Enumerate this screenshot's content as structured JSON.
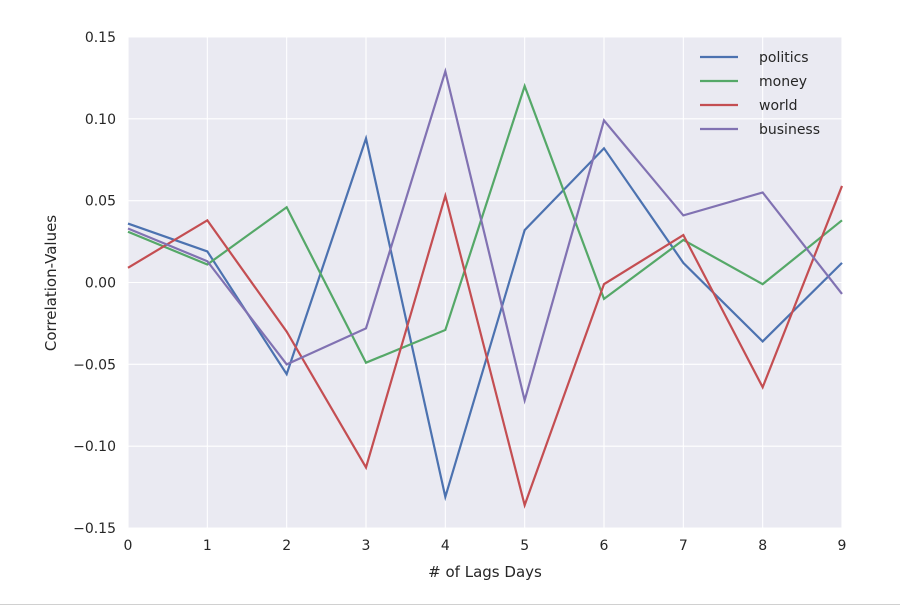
{
  "chart_data": {
    "type": "line",
    "title": "",
    "xlabel": "# of Lags Days",
    "ylabel": "Correlation-Values",
    "x": [
      0,
      1,
      2,
      3,
      4,
      5,
      6,
      7,
      8,
      9
    ],
    "xlim": [
      0,
      9
    ],
    "ylim": [
      -0.15,
      0.15
    ],
    "xticks": [
      "0",
      "1",
      "2",
      "3",
      "4",
      "5",
      "6",
      "7",
      "8",
      "9"
    ],
    "yticks": [
      "0.15",
      "0.10",
      "0.05",
      "0.00",
      "−0.05",
      "−0.10",
      "−0.15"
    ],
    "yticks_values": [
      0.15,
      0.1,
      0.05,
      0.0,
      -0.05,
      -0.1,
      -0.15
    ],
    "grid": true,
    "legend_position": "top-right",
    "background": "#eaeaf2",
    "series": [
      {
        "name": "politics",
        "color": "#4c72b0",
        "values": [
          0.036,
          0.019,
          -0.056,
          0.088,
          -0.131,
          0.032,
          0.082,
          0.012,
          -0.036,
          0.012
        ]
      },
      {
        "name": "money",
        "color": "#55a868",
        "values": [
          0.031,
          0.011,
          0.046,
          -0.049,
          -0.029,
          0.12,
          -0.01,
          0.026,
          -0.001,
          0.038
        ]
      },
      {
        "name": "world",
        "color": "#c44e52",
        "values": [
          0.009,
          0.038,
          -0.03,
          -0.113,
          0.053,
          -0.136,
          -0.001,
          0.029,
          -0.064,
          0.059
        ]
      },
      {
        "name": "business",
        "color": "#8172b2",
        "values": [
          0.033,
          0.013,
          -0.05,
          -0.028,
          0.129,
          -0.072,
          0.099,
          0.041,
          0.055,
          -0.007
        ]
      }
    ]
  }
}
